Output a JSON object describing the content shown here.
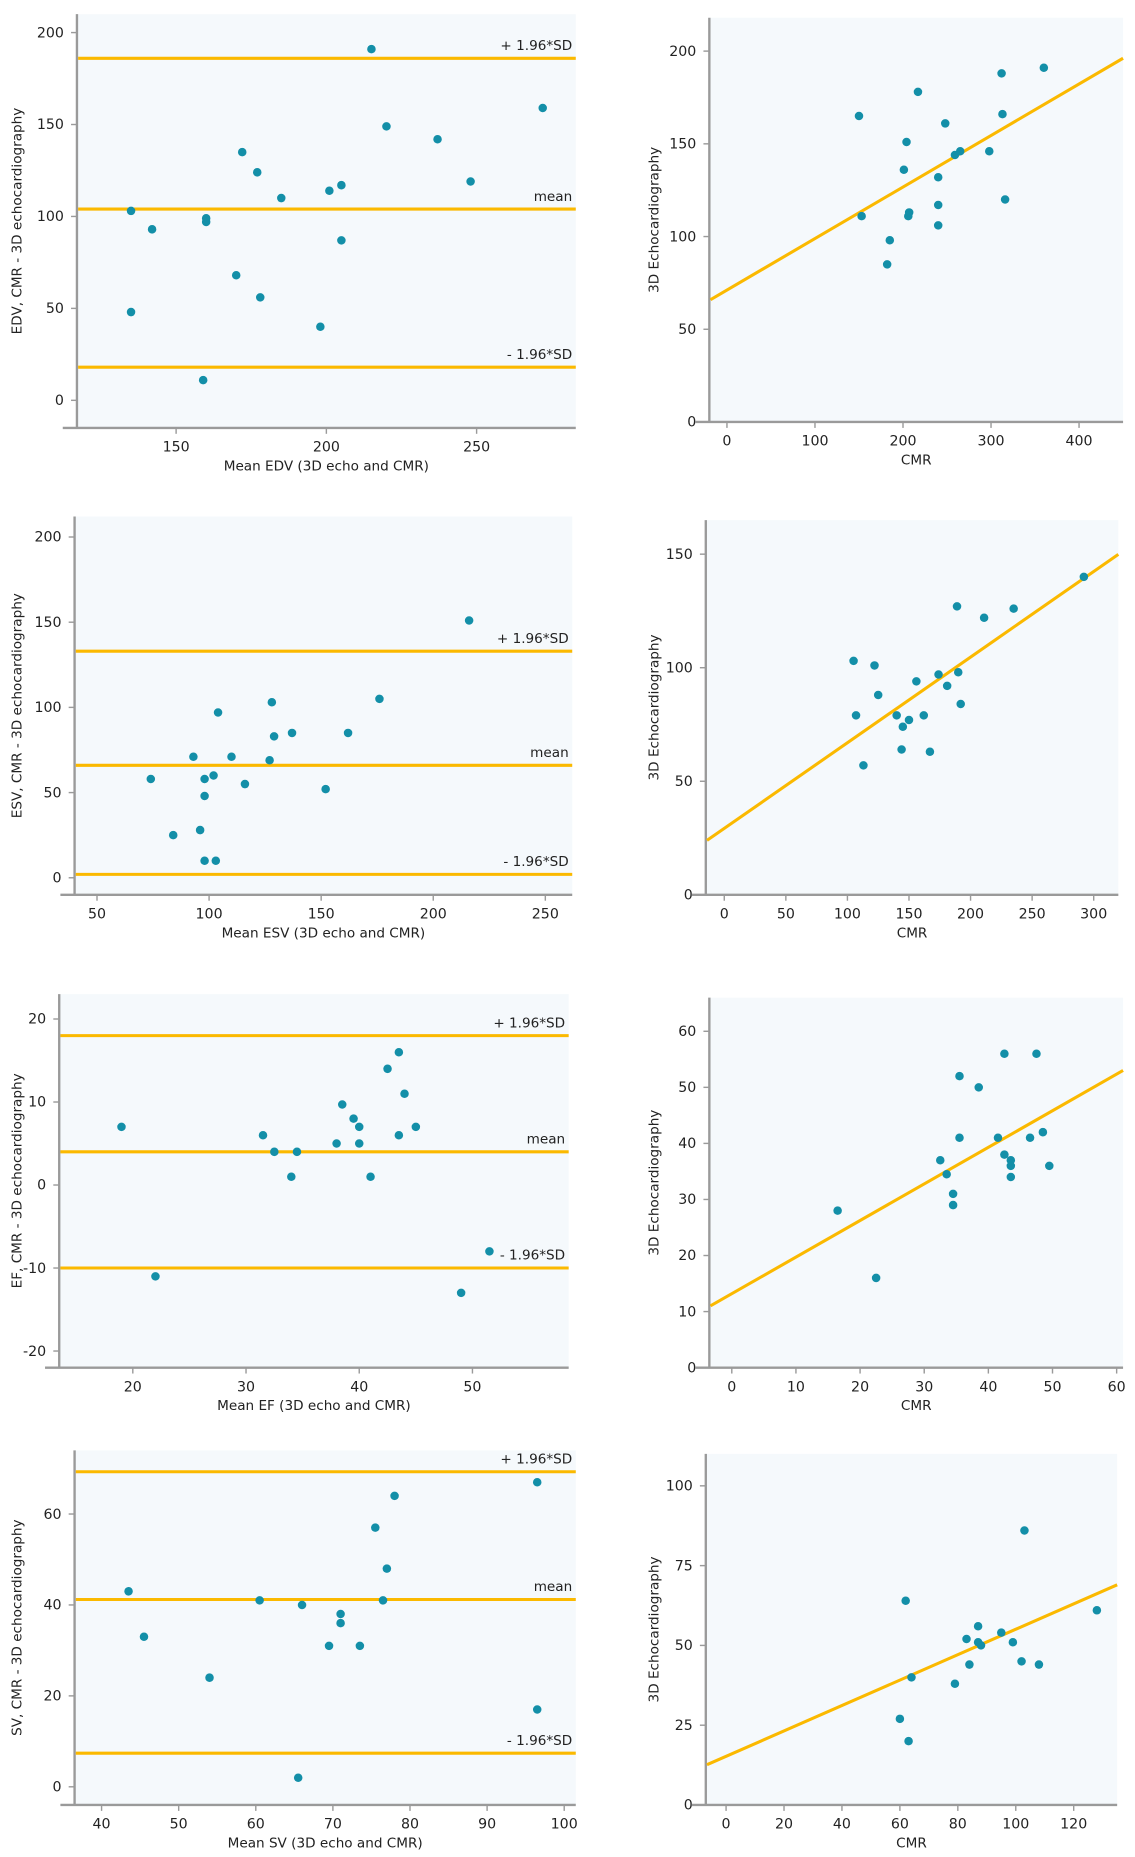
{
  "colors": {
    "point": "#138fa8",
    "line": "#fbb900",
    "plot_bg": "#f5f9fc",
    "axis": "#9a9a9a"
  },
  "chart_data": [
    {
      "id": "edv-bland-altman",
      "type": "scatter",
      "xlabel": "Mean EDV (3D echo and CMR)",
      "ylabel": "EDV, CMR - 3D echocardiography",
      "xlim": [
        117,
        283
      ],
      "ylim": [
        -15,
        210
      ],
      "xticks": [
        150,
        200,
        250
      ],
      "yticks": [
        0,
        50,
        100,
        150,
        200
      ],
      "hlines": [
        {
          "label": "+ 1.96*SD",
          "y": 186
        },
        {
          "label": "mean",
          "y": 104
        },
        {
          "label": "- 1.96*SD",
          "y": 18
        }
      ],
      "points": [
        [
          135,
          103
        ],
        [
          135,
          48
        ],
        [
          142,
          93
        ],
        [
          160,
          99
        ],
        [
          160,
          97
        ],
        [
          159,
          11
        ],
        [
          170,
          68
        ],
        [
          172,
          135
        ],
        [
          177,
          124
        ],
        [
          178,
          56
        ],
        [
          185,
          110
        ],
        [
          198,
          40
        ],
        [
          201,
          114
        ],
        [
          205,
          117
        ],
        [
          205,
          87
        ],
        [
          215,
          191
        ],
        [
          220,
          149
        ],
        [
          237,
          142
        ],
        [
          248,
          119
        ],
        [
          272,
          159
        ]
      ]
    },
    {
      "id": "edv-correlation",
      "type": "scatter",
      "xlabel": "CMR",
      "ylabel": "3D Echocardiography",
      "xlim": [
        -20,
        450
      ],
      "ylim": [
        0,
        218
      ],
      "xticks": [
        0,
        100,
        200,
        300,
        400
      ],
      "yticks": [
        0,
        50,
        100,
        150,
        200
      ],
      "fit": {
        "intercept": 71.5,
        "slope": 0.277
      },
      "points": [
        [
          150,
          165
        ],
        [
          153,
          111
        ],
        [
          182,
          85
        ],
        [
          185,
          98
        ],
        [
          201,
          136
        ],
        [
          204,
          151
        ],
        [
          206,
          111
        ],
        [
          207,
          113
        ],
        [
          217,
          178
        ],
        [
          240,
          132
        ],
        [
          240,
          117
        ],
        [
          240,
          106
        ],
        [
          248,
          161
        ],
        [
          259,
          144
        ],
        [
          265,
          146
        ],
        [
          298,
          146
        ],
        [
          312,
          188
        ],
        [
          313,
          166
        ],
        [
          316,
          120
        ],
        [
          360,
          191
        ]
      ]
    },
    {
      "id": "esv-bland-altman",
      "type": "scatter",
      "xlabel": "Mean ESV (3D echo and CMR)",
      "ylabel": "ESV, CMR - 3D echocardiography",
      "xlim": [
        40,
        262
      ],
      "ylim": [
        -10,
        212
      ],
      "xticks": [
        50,
        100,
        150,
        200,
        250
      ],
      "yticks": [
        0,
        50,
        100,
        150,
        200
      ],
      "hlines": [
        {
          "label": "+ 1.96*SD",
          "y": 133
        },
        {
          "label": "mean",
          "y": 66
        },
        {
          "label": "- 1.96*SD",
          "y": 2
        }
      ],
      "points": [
        [
          74,
          58
        ],
        [
          84,
          25
        ],
        [
          93,
          71
        ],
        [
          96,
          28
        ],
        [
          98,
          10
        ],
        [
          98,
          58
        ],
        [
          98,
          48
        ],
        [
          102,
          60
        ],
        [
          103,
          10
        ],
        [
          104,
          97
        ],
        [
          110,
          71
        ],
        [
          116,
          55
        ],
        [
          127,
          69
        ],
        [
          128,
          103
        ],
        [
          129,
          83
        ],
        [
          137,
          85
        ],
        [
          152,
          52
        ],
        [
          162,
          85
        ],
        [
          176,
          105
        ],
        [
          216,
          151
        ]
      ]
    },
    {
      "id": "esv-correlation",
      "type": "scatter",
      "xlabel": "CMR",
      "ylabel": "3D Echocardiography",
      "xlim": [
        -15,
        320
      ],
      "ylim": [
        0,
        165
      ],
      "xticks": [
        0,
        50,
        100,
        150,
        200,
        250,
        300
      ],
      "yticks": [
        0,
        50,
        100,
        150
      ],
      "fit": {
        "intercept": 29.6,
        "slope": 0.376
      },
      "points": [
        [
          105,
          103
        ],
        [
          107,
          79
        ],
        [
          113,
          57
        ],
        [
          122,
          101
        ],
        [
          125,
          88
        ],
        [
          140,
          79
        ],
        [
          144,
          64
        ],
        [
          145,
          74
        ],
        [
          150,
          77
        ],
        [
          156,
          94
        ],
        [
          162,
          79
        ],
        [
          167,
          63
        ],
        [
          174,
          97
        ],
        [
          181,
          92
        ],
        [
          189,
          127
        ],
        [
          190,
          98
        ],
        [
          192,
          84
        ],
        [
          211,
          122
        ],
        [
          235,
          126
        ],
        [
          292,
          140
        ]
      ]
    },
    {
      "id": "ef-bland-altman",
      "type": "scatter",
      "xlabel": "Mean EF (3D echo and CMR)",
      "ylabel": "EF, CMR - 3D echocardiography",
      "xlim": [
        13.5,
        58.5
      ],
      "ylim": [
        -22,
        23
      ],
      "xticks": [
        20,
        30,
        40,
        50
      ],
      "yticks": [
        -20,
        -10,
        0,
        10,
        20
      ],
      "hlines": [
        {
          "label": "+ 1.96*SD",
          "y": 18
        },
        {
          "label": "mean",
          "y": 4
        },
        {
          "label": "- 1.96*SD",
          "y": -10
        }
      ],
      "points": [
        [
          19,
          7
        ],
        [
          22,
          -11
        ],
        [
          31.5,
          6
        ],
        [
          32.5,
          4
        ],
        [
          34,
          1
        ],
        [
          34.5,
          4
        ],
        [
          38,
          5
        ],
        [
          38.5,
          9.7
        ],
        [
          39.5,
          8
        ],
        [
          40,
          7
        ],
        [
          40,
          5
        ],
        [
          41,
          1
        ],
        [
          42.5,
          14
        ],
        [
          43.5,
          16
        ],
        [
          43.5,
          6
        ],
        [
          44,
          11
        ],
        [
          45,
          7
        ],
        [
          49,
          -13
        ],
        [
          51.5,
          -8
        ]
      ]
    },
    {
      "id": "ef-correlation",
      "type": "scatter",
      "xlabel": "CMR",
      "ylabel": "3D Echocardiography",
      "xlim": [
        -3.5,
        61
      ],
      "ylim": [
        0,
        66
      ],
      "xticks": [
        0,
        10,
        20,
        30,
        40,
        50,
        60
      ],
      "yticks": [
        0,
        10,
        20,
        30,
        40,
        50,
        60
      ],
      "fit": {
        "intercept": 13.3,
        "slope": 0.651
      },
      "points": [
        [
          16.5,
          28
        ],
        [
          22.5,
          16
        ],
        [
          32.5,
          37
        ],
        [
          33.5,
          34.5
        ],
        [
          34.5,
          31
        ],
        [
          34.5,
          29
        ],
        [
          35.5,
          52
        ],
        [
          35.5,
          41
        ],
        [
          38.5,
          50
        ],
        [
          41.5,
          41
        ],
        [
          42.5,
          56
        ],
        [
          42.5,
          38
        ],
        [
          43.5,
          37
        ],
        [
          43.5,
          36
        ],
        [
          43.5,
          34
        ],
        [
          46.5,
          41
        ],
        [
          47.5,
          56
        ],
        [
          48.5,
          42
        ],
        [
          49.5,
          36
        ]
      ]
    },
    {
      "id": "sv-bland-altman",
      "type": "scatter",
      "xlabel": "Mean SV (3D echo and CMR)",
      "ylabel": "SV, CMR - 3D echocardiography",
      "xlim": [
        36.5,
        101.5
      ],
      "ylim": [
        -4,
        74
      ],
      "xticks": [
        40,
        50,
        60,
        70,
        80,
        90,
        100
      ],
      "yticks": [
        0,
        20,
        40,
        60
      ],
      "hlines": [
        {
          "label": "+ 1.96*SD",
          "y": 69.3
        },
        {
          "label": "mean",
          "y": 41.2
        },
        {
          "label": "- 1.96*SD",
          "y": 7.4
        }
      ],
      "points": [
        [
          43.5,
          43
        ],
        [
          45.5,
          33
        ],
        [
          54,
          24
        ],
        [
          60.5,
          41
        ],
        [
          65.5,
          2
        ],
        [
          66,
          40
        ],
        [
          69.5,
          31
        ],
        [
          71,
          38
        ],
        [
          71,
          36
        ],
        [
          73.5,
          31
        ],
        [
          75.5,
          57
        ],
        [
          76.5,
          41
        ],
        [
          77,
          48
        ],
        [
          78,
          64
        ],
        [
          96.5,
          67
        ],
        [
          96.5,
          17
        ]
      ]
    },
    {
      "id": "sv-correlation",
      "type": "scatter",
      "xlabel": "CMR",
      "ylabel": "3D Echocardiography",
      "xlim": [
        -7,
        135
      ],
      "ylim": [
        0,
        110
      ],
      "xticks": [
        0,
        20,
        40,
        60,
        80,
        100,
        120
      ],
      "yticks": [
        0,
        25,
        50,
        75,
        100
      ],
      "fit": {
        "intercept": 15.4,
        "slope": 0.397
      },
      "points": [
        [
          60,
          27
        ],
        [
          62,
          64
        ],
        [
          63,
          20
        ],
        [
          64,
          40
        ],
        [
          79,
          38
        ],
        [
          83,
          52
        ],
        [
          84,
          44
        ],
        [
          87,
          56
        ],
        [
          87,
          51
        ],
        [
          88,
          50
        ],
        [
          95,
          54
        ],
        [
          99,
          51
        ],
        [
          102,
          45
        ],
        [
          103,
          86
        ],
        [
          108,
          44
        ],
        [
          128,
          61
        ]
      ]
    }
  ]
}
